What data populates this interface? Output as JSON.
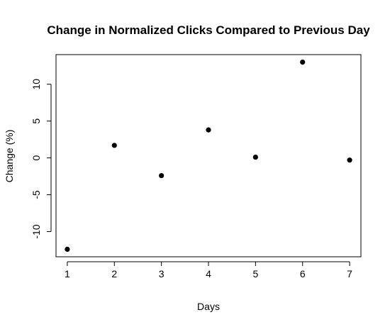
{
  "chart_data": {
    "type": "scatter",
    "title": "Change in Normalized Clicks Compared to Previous Day",
    "xlabel": "Days",
    "ylabel": "Change (%)",
    "x": [
      1,
      2,
      3,
      4,
      5,
      6,
      7
    ],
    "y": [
      -12.4,
      1.7,
      -2.4,
      3.8,
      0.1,
      13.0,
      -0.3
    ],
    "xlim": [
      0.76,
      7.24
    ],
    "ylim": [
      -13.42,
      14.02
    ],
    "x_ticks": [
      1,
      2,
      3,
      4,
      5,
      6,
      7
    ],
    "x_tick_labels": [
      "1",
      "2",
      "3",
      "4",
      "5",
      "6",
      "7"
    ],
    "y_ticks": [
      -10,
      -5,
      0,
      5,
      10
    ],
    "y_tick_labels": [
      "-10",
      "-5",
      "0",
      "5",
      "10"
    ],
    "grid": false,
    "point_color": "#000000"
  }
}
